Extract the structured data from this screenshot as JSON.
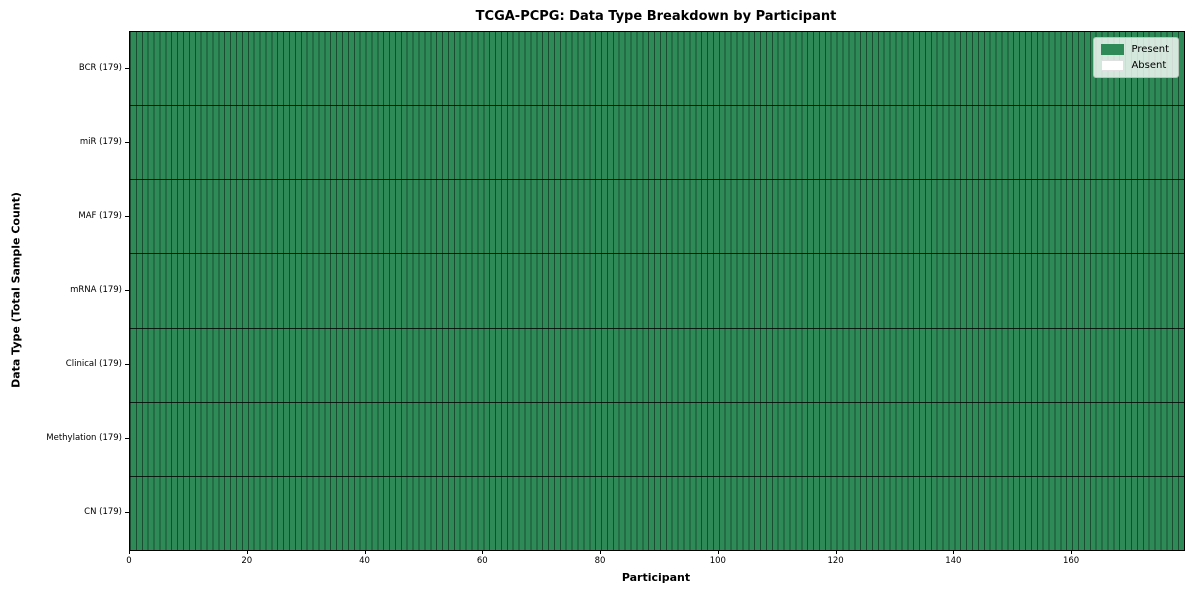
{
  "chart_data": {
    "type": "heatmap",
    "title": "TCGA-PCPG: Data Type Breakdown by Participant",
    "xlabel": "Participant",
    "ylabel": "Data Type (Total Sample Count)",
    "n_participants": 179,
    "x_range": [
      0,
      179
    ],
    "x_ticks": [
      0,
      20,
      40,
      60,
      80,
      100,
      120,
      140,
      160
    ],
    "rows": [
      {
        "name": "BCR",
        "label": "BCR (179)",
        "total_samples": 179,
        "present_count": 179,
        "absent_count": 0
      },
      {
        "name": "miR",
        "label": "miR (179)",
        "total_samples": 179,
        "present_count": 179,
        "absent_count": 0
      },
      {
        "name": "MAF",
        "label": "MAF (179)",
        "total_samples": 179,
        "present_count": 179,
        "absent_count": 0
      },
      {
        "name": "mRNA",
        "label": "mRNA (179)",
        "total_samples": 179,
        "present_count": 179,
        "absent_count": 0
      },
      {
        "name": "Clinical",
        "label": "Clinical (179)",
        "total_samples": 179,
        "present_count": 179,
        "absent_count": 0
      },
      {
        "name": "Methylation",
        "label": "Methylation (179)",
        "total_samples": 179,
        "present_count": 179,
        "absent_count": 0
      },
      {
        "name": "CN",
        "label": "CN (179)",
        "total_samples": 179,
        "present_count": 179,
        "absent_count": 0
      }
    ],
    "legend": {
      "position": "upper right",
      "entries": [
        {
          "label": "Present",
          "color": "#2e8b57"
        },
        {
          "label": "Absent",
          "color": "#ffffff"
        }
      ]
    },
    "colors": {
      "present": "#2e8b57",
      "absent": "#ffffff",
      "cell_edge": "rgba(0,0,0,0.45)",
      "row_separator": "rgba(0,0,0,0.8)",
      "axis": "#000000"
    },
    "grid": false
  }
}
